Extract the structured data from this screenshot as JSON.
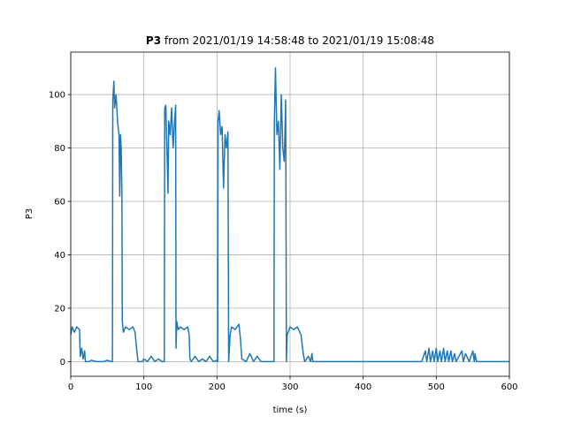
{
  "chart_data": {
    "type": "line",
    "title_bold": "P3",
    "title": "from 2021/01/19 14:58:48 to 2021/01/19 15:08:48",
    "xlabel": "time (s)",
    "ylabel": "P3",
    "color": "#1f77b4",
    "grid": true,
    "xlim": [
      0,
      600
    ],
    "ylim": [
      -5.5,
      115.9
    ],
    "xticks": [
      0,
      100,
      200,
      300,
      400,
      500,
      600
    ],
    "yticks": [
      0,
      20,
      40,
      60,
      80,
      100
    ],
    "x": [
      0,
      2,
      5,
      8,
      12,
      13,
      15,
      17,
      19,
      20,
      25,
      28,
      35,
      40,
      45,
      50,
      55,
      57,
      57.5,
      59,
      60,
      62,
      64,
      66,
      67,
      68,
      69,
      70,
      70.5,
      72,
      75,
      80,
      85,
      88,
      90,
      92,
      98,
      100,
      105,
      110,
      115,
      120,
      125,
      128,
      128.5,
      130,
      132,
      133,
      134,
      136,
      138,
      140,
      142,
      143.5,
      144,
      145,
      147,
      150,
      155,
      160,
      162,
      163,
      165,
      170,
      175,
      180,
      185,
      190,
      195,
      200,
      201,
      201.5,
      203,
      205,
      207,
      209,
      211,
      213,
      215,
      216,
      218,
      220,
      225,
      230,
      232,
      234,
      240,
      245,
      250,
      255,
      260,
      265,
      278,
      278.5,
      280,
      282,
      284,
      286,
      288,
      290,
      292,
      294,
      295,
      296,
      300,
      305,
      310,
      315,
      318,
      320,
      325,
      328,
      330,
      331,
      360,
      480,
      485,
      487,
      490,
      492,
      495,
      497,
      500,
      502,
      505,
      507,
      510,
      512,
      515,
      517,
      520,
      522,
      525,
      527,
      535,
      537,
      540,
      545,
      550,
      552,
      553,
      555,
      600
    ],
    "values": [
      10,
      13,
      11,
      13,
      12,
      2,
      5,
      1,
      4,
      0,
      0,
      0.5,
      0,
      0,
      0,
      0.5,
      0,
      0,
      98,
      105,
      95,
      100,
      90,
      85,
      62,
      85,
      80,
      62,
      15,
      11,
      13,
      12,
      13,
      11,
      5,
      0,
      0,
      1,
      0,
      2,
      0,
      1,
      0,
      0,
      95,
      96,
      75,
      63,
      90,
      85,
      95,
      80,
      90,
      96,
      5,
      15,
      12,
      13,
      12,
      13,
      10,
      1,
      0,
      2,
      0,
      1,
      0,
      2,
      0,
      0.5,
      0,
      90,
      94,
      85,
      88,
      65,
      85,
      80,
      86,
      0,
      10,
      13,
      12,
      14,
      9,
      1,
      0,
      3,
      0,
      2,
      0,
      0,
      0,
      90,
      110,
      85,
      90,
      72,
      100,
      80,
      75,
      98,
      0,
      10,
      13,
      12,
      13,
      10,
      3,
      0,
      2,
      0,
      3,
      0,
      0,
      0,
      4,
      0,
      5,
      0,
      4,
      0,
      5,
      0,
      4,
      0,
      5,
      0,
      4,
      0,
      4,
      0,
      3,
      0,
      4,
      0,
      3,
      0,
      4,
      0,
      3,
      0,
      0
    ]
  }
}
